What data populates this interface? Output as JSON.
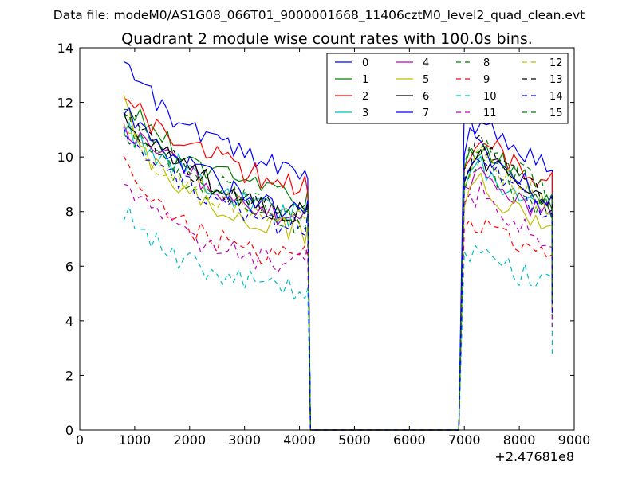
{
  "chart_data": {
    "type": "line",
    "suptitle": "Data file: modeM0/AS1G08_066T01_9000001668_11406cztM0_level2_quad_clean.evt",
    "title": "Quadrant 2 module wise count rates with 100.0s bins.",
    "xlabel": "",
    "ylabel": "",
    "x_offset_label": "+2.47681e8",
    "xlim": [
      0,
      9000
    ],
    "ylim": [
      0,
      14
    ],
    "xticks": [
      0,
      1000,
      2000,
      3000,
      4000,
      5000,
      6000,
      7000,
      8000,
      9000
    ],
    "yticks": [
      0,
      2,
      4,
      6,
      8,
      10,
      12,
      14
    ],
    "grid": false,
    "legend_position": "top-right",
    "gap": {
      "start": 4200,
      "end": 6900
    },
    "segment1_x": [
      800,
      4100
    ],
    "segment2_x": [
      7000,
      8600
    ],
    "series": [
      {
        "name": "0",
        "color": "#0000ff",
        "style": "solid",
        "drop1": 9.2,
        "drop2": 5.0,
        "seg1": [
          13.8,
          12.6,
          11.8,
          11.3,
          11.0,
          10.6,
          10.2,
          9.9,
          9.7,
          9.5,
          9.3
        ],
        "seg2": [
          10.5,
          11.3,
          10.9,
          10.4,
          10.1,
          9.8,
          9.4
        ]
      },
      {
        "name": "1",
        "color": "#008000",
        "style": "solid",
        "drop1": 8.8,
        "drop2": 4.8,
        "seg1": [
          11.5,
          11.4,
          10.8,
          10.3,
          9.8,
          9.5,
          9.3,
          9.0,
          8.8,
          8.6,
          8.5
        ],
        "seg2": [
          9.5,
          10.6,
          10.1,
          9.6,
          9.2,
          8.8,
          8.4
        ]
      },
      {
        "name": "2",
        "color": "#ff0000",
        "style": "solid",
        "drop1": 8.7,
        "drop2": 4.9,
        "seg1": [
          12.2,
          11.6,
          11.0,
          10.6,
          10.3,
          10.0,
          9.7,
          9.4,
          9.2,
          9.0,
          8.9
        ],
        "seg2": [
          9.8,
          10.8,
          10.3,
          9.9,
          9.6,
          9.3,
          9.0
        ]
      },
      {
        "name": "3",
        "color": "#00bfbf",
        "style": "solid",
        "drop1": 8.2,
        "drop2": 4.5,
        "seg1": [
          11.0,
          10.6,
          10.1,
          9.7,
          9.3,
          8.9,
          8.6,
          8.3,
          8.1,
          7.9,
          7.8
        ],
        "seg2": [
          8.8,
          9.8,
          9.3,
          8.9,
          8.5,
          8.2,
          7.9
        ]
      },
      {
        "name": "4",
        "color": "#bf00bf",
        "style": "solid",
        "drop1": 8.0,
        "drop2": 4.6,
        "seg1": [
          11.2,
          10.7,
          10.2,
          9.7,
          9.3,
          8.9,
          8.5,
          8.2,
          8.0,
          7.8,
          7.6
        ],
        "seg2": [
          8.7,
          9.7,
          9.2,
          8.8,
          8.4,
          8.1,
          7.8
        ]
      },
      {
        "name": "5",
        "color": "#bfbf00",
        "style": "solid",
        "drop1": 7.5,
        "drop2": 4.3,
        "seg1": [
          12.6,
          10.0,
          9.5,
          9.0,
          8.6,
          8.3,
          8.0,
          7.8,
          7.6,
          7.4,
          7.2
        ],
        "seg2": [
          8.4,
          9.2,
          8.5,
          8.2,
          7.8,
          7.6,
          7.5
        ]
      },
      {
        "name": "6",
        "color": "#000000",
        "style": "solid",
        "drop1": 8.1,
        "drop2": 4.7,
        "seg1": [
          11.3,
          10.9,
          10.3,
          9.9,
          9.4,
          9.0,
          8.7,
          8.4,
          8.2,
          8.0,
          7.9
        ],
        "seg2": [
          9.0,
          10.1,
          9.6,
          9.2,
          8.8,
          8.5,
          8.1
        ]
      },
      {
        "name": "7",
        "color": "#0000ff",
        "style": "solid",
        "drop1": 8.4,
        "drop2": 4.4,
        "seg1": [
          11.8,
          11.1,
          10.5,
          9.9,
          9.5,
          9.1,
          8.7,
          8.4,
          8.2,
          8.0,
          7.9
        ],
        "seg2": [
          11.9,
          10.5,
          9.9,
          9.5,
          9.1,
          8.7,
          8.3
        ]
      },
      {
        "name": "8",
        "color": "#008000",
        "style": "dashed",
        "drop1": 7.9,
        "drop2": 4.6,
        "seg1": [
          11.0,
          10.4,
          9.8,
          9.4,
          9.0,
          8.7,
          8.4,
          8.1,
          7.9,
          7.7,
          7.6
        ],
        "seg2": [
          8.9,
          9.9,
          9.4,
          9.0,
          8.6,
          8.3,
          8.0
        ]
      },
      {
        "name": "9",
        "color": "#ff0000",
        "style": "dashed",
        "drop1": 6.4,
        "drop2": 3.6,
        "seg1": [
          9.6,
          8.6,
          8.0,
          7.6,
          7.3,
          7.0,
          6.8,
          6.6,
          6.5,
          6.4,
          6.3
        ],
        "seg2": [
          7.3,
          7.7,
          7.3,
          7.0,
          6.8,
          6.6,
          6.5
        ]
      },
      {
        "name": "10",
        "color": "#00bfbf",
        "style": "dashed",
        "drop1": 5.2,
        "drop2": 2.8,
        "seg1": [
          8.1,
          7.2,
          6.7,
          6.3,
          6.0,
          5.8,
          5.6,
          5.4,
          5.3,
          5.2,
          5.2
        ],
        "seg2": [
          6.1,
          6.5,
          6.2,
          5.9,
          5.7,
          5.6,
          5.4
        ]
      },
      {
        "name": "11",
        "color": "#bf00bf",
        "style": "dashed",
        "drop1": 6.8,
        "drop2": 3.8,
        "seg1": [
          9.3,
          8.3,
          7.7,
          7.3,
          7.0,
          6.7,
          6.5,
          6.3,
          6.2,
          6.1,
          6.0
        ],
        "seg2": [
          8.0,
          8.7,
          8.2,
          7.8,
          7.4,
          7.0,
          6.7
        ]
      },
      {
        "name": "12",
        "color": "#bfbf00",
        "style": "dashed",
        "drop1": 8.0,
        "drop2": 4.5,
        "seg1": [
          10.9,
          10.3,
          9.7,
          9.3,
          8.9,
          8.6,
          8.3,
          8.1,
          7.9,
          7.7,
          7.6
        ],
        "seg2": [
          9.2,
          10.2,
          9.6,
          9.2,
          8.8,
          8.5,
          8.2
        ]
      },
      {
        "name": "13",
        "color": "#000000",
        "style": "dashed",
        "drop1": 8.3,
        "drop2": 4.7,
        "seg1": [
          11.6,
          10.9,
          10.3,
          9.8,
          9.4,
          9.0,
          8.7,
          8.4,
          8.2,
          8.0,
          7.9
        ],
        "seg2": [
          9.4,
          10.5,
          10.0,
          9.6,
          9.2,
          8.8,
          8.4
        ]
      },
      {
        "name": "14",
        "color": "#0000ff",
        "style": "dashed",
        "drop1": 7.9,
        "drop2": 4.2,
        "seg1": [
          10.7,
          10.2,
          9.6,
          9.1,
          8.7,
          8.4,
          8.1,
          7.8,
          7.6,
          7.5,
          7.4
        ],
        "seg2": [
          9.6,
          10.1,
          9.5,
          9.1,
          8.6,
          8.2,
          7.8
        ]
      },
      {
        "name": "15",
        "color": "#008000",
        "style": "dashed",
        "drop1": 8.1,
        "drop2": 4.6,
        "seg1": [
          11.4,
          10.8,
          10.2,
          9.8,
          9.4,
          9.0,
          8.7,
          8.4,
          8.2,
          8.0,
          7.9
        ],
        "seg2": [
          9.6,
          10.7,
          10.1,
          9.7,
          9.3,
          8.9,
          8.5
        ]
      }
    ]
  }
}
